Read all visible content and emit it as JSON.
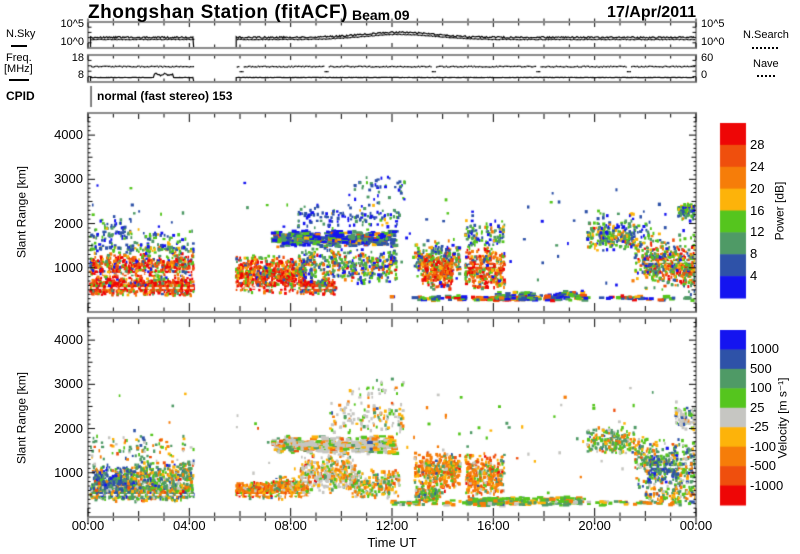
{
  "header": {
    "station_title": "Zhongshan Station (fitACF)",
    "beam_label": "Beam 09",
    "date_label": "17/Apr/2011"
  },
  "panels": {
    "nsky": {
      "left_label": "N.Sky",
      "right_label": "N.Search",
      "tick_top": "10^5",
      "tick_bottom": "10^0"
    },
    "freq": {
      "left_label_1": "Freq.",
      "left_label_2": "[MHz]",
      "right_label": "Nave",
      "tick_top": "18",
      "tick_bottom": "8",
      "right_tick_top": "60",
      "right_tick_bottom": "0"
    },
    "cpid": {
      "label": "CPID",
      "value": "normal (fast stereo) 153"
    }
  },
  "axes": {
    "x": {
      "label": "Time UT",
      "tick_labels": [
        "00:00",
        "04:00",
        "08:00",
        "12:00",
        "16:00",
        "20:00",
        "00:00"
      ],
      "tick_hours": [
        0,
        4,
        8,
        12,
        16,
        20,
        24
      ]
    },
    "y": {
      "label": "Slant Range [km]",
      "tick_labels": [
        "1000",
        "2000",
        "3000",
        "4000"
      ],
      "tick_values": [
        1000,
        2000,
        3000,
        4000
      ],
      "max_km": 4500
    }
  },
  "colorbars": {
    "power": {
      "title": "Power [dB]",
      "labels": [
        "28",
        "24",
        "20",
        "16",
        "12",
        "8",
        "4"
      ],
      "colors": [
        "#ee0606",
        "#ef4f0d",
        "#f67d09",
        "#fdb30a",
        "#55c51e",
        "#4f9a66",
        "#2e52a8",
        "#1414f0"
      ]
    },
    "velocity": {
      "title": "Velocity [m s⁻¹]",
      "labels": [
        "1000",
        "500",
        "100",
        "25",
        "-25",
        "-100",
        "-500",
        "-1000"
      ],
      "colors": [
        "#1414f0",
        "#2e52a8",
        "#4f9a66",
        "#55c51e",
        "#c6c6c2",
        "#fdb30a",
        "#f67d09",
        "#ef4f0d",
        "#ee0606"
      ]
    }
  },
  "chart_data": [
    {
      "name": "nsky_panel",
      "type": "line",
      "yscale": "log",
      "ylim_exponents": [
        0,
        5
      ],
      "data_gap_hours": [
        4.17,
        5.85
      ],
      "segments": [
        [
          0.1,
          4.17
        ],
        [
          5.85,
          23.95
        ]
      ],
      "nsky_base_decade": 2.0,
      "bump": {
        "center_hour": 12.3,
        "sigma_hours": 2.0,
        "amplitude_decades": 1.05
      },
      "nsearch_offset_decades": -0.3
    },
    {
      "name": "freq_panel",
      "type": "line",
      "freq_ylim_mhz": [
        8,
        18
      ],
      "nave_ylim": [
        0,
        60
      ],
      "segments": [
        [
          0.1,
          4.17
        ],
        [
          5.85,
          23.95
        ]
      ],
      "freq_mhz": 9.4,
      "freq_wiggle": {
        "t": [
          2.6,
          3.35
        ],
        "mhz": 10.6
      },
      "nave_value": 36,
      "nave_dip_hours": [
        6.05,
        9.4,
        13.6,
        17.75,
        21.3
      ],
      "nave_dip_value": 24,
      "cpid_marker_hour": 0.12
    },
    {
      "name": "power_panel",
      "type": "scatter",
      "ylim_km": [
        0,
        4500
      ],
      "color_bin_edges_db": [
        4,
        8,
        12,
        16,
        20,
        24,
        28
      ],
      "cluster_format": [
        "t_start",
        "t_end",
        "range_start_km",
        "range_end_km",
        "n_points",
        "color_weights(top_red...bottom_blue)",
        "range_slope_km_per_hour",
        "dash_shaped"
      ],
      "clusters": [
        [
          0.1,
          4.17,
          350,
          800,
          650,
          [
            0.4,
            0.22,
            0.12,
            0.07,
            0.09,
            0.05,
            0.03,
            0.02
          ],
          0,
          0
        ],
        [
          0.1,
          4.17,
          750,
          1350,
          500,
          [
            0.28,
            0.18,
            0.12,
            0.08,
            0.14,
            0.1,
            0.06,
            0.04
          ],
          0,
          0
        ],
        [
          0.1,
          4.17,
          1300,
          1550,
          90,
          [
            0,
            0,
            0.05,
            0.1,
            0.3,
            0.25,
            0.2,
            0.1
          ],
          0,
          0
        ],
        [
          0.1,
          1.7,
          1350,
          2250,
          80,
          [
            0,
            0,
            0,
            0.05,
            0.15,
            0.2,
            0.35,
            0.25
          ],
          0,
          0
        ],
        [
          1.7,
          4.17,
          1350,
          1950,
          55,
          [
            0,
            0,
            0,
            0.05,
            0.15,
            0.2,
            0.35,
            0.25
          ],
          0,
          0
        ],
        [
          5.85,
          8.6,
          400,
          1300,
          620,
          [
            0.34,
            0.2,
            0.13,
            0.08,
            0.12,
            0.07,
            0.04,
            0.02
          ],
          0,
          0
        ],
        [
          8.4,
          9.8,
          380,
          750,
          220,
          [
            0.3,
            0.22,
            0.15,
            0.08,
            0.12,
            0.08,
            0.03,
            0.02
          ],
          0,
          0
        ],
        [
          8.3,
          12.2,
          600,
          1500,
          420,
          [
            0.04,
            0.06,
            0.08,
            0.1,
            0.22,
            0.2,
            0.18,
            0.12
          ],
          0,
          0
        ],
        [
          7.3,
          12.15,
          1450,
          1850,
          430,
          [
            0,
            0.02,
            0.04,
            0.06,
            0.14,
            0.18,
            0.3,
            0.26
          ],
          0,
          1
        ],
        [
          8.3,
          12.3,
          1850,
          2500,
          130,
          [
            0,
            0,
            0,
            0.04,
            0.12,
            0.16,
            0.36,
            0.32
          ],
          0,
          0
        ],
        [
          10.3,
          12.5,
          2500,
          3150,
          40,
          [
            0,
            0,
            0,
            0,
            0.1,
            0.15,
            0.4,
            0.35
          ],
          0,
          0
        ],
        [
          12.9,
          14.7,
          700,
          1650,
          260,
          [
            0.04,
            0.06,
            0.08,
            0.12,
            0.24,
            0.2,
            0.16,
            0.1
          ],
          0,
          0
        ],
        [
          13.2,
          14.4,
          480,
          1300,
          210,
          [
            0.24,
            0.3,
            0.2,
            0.1,
            0.08,
            0.05,
            0.02,
            0.01
          ],
          0,
          0
        ],
        [
          14.9,
          16.45,
          400,
          1500,
          330,
          [
            0.22,
            0.28,
            0.18,
            0.1,
            0.1,
            0.07,
            0.03,
            0.02
          ],
          0,
          0
        ],
        [
          14.9,
          16.45,
          1400,
          2100,
          100,
          [
            0,
            0,
            0.04,
            0.08,
            0.26,
            0.24,
            0.22,
            0.16
          ],
          0,
          0
        ],
        [
          15.2,
          17.3,
          255,
          340,
          80,
          [
            0.3,
            0.25,
            0.1,
            0.05,
            0.12,
            0.1,
            0.05,
            0.03
          ],
          0,
          1
        ],
        [
          16.1,
          19.6,
          255,
          470,
          90,
          [
            0,
            0.03,
            0.05,
            0.07,
            0.2,
            0.2,
            0.25,
            0.2
          ],
          0,
          1
        ],
        [
          19.7,
          21.6,
          1350,
          2060,
          210,
          [
            0.02,
            0.04,
            0.1,
            0.14,
            0.28,
            0.2,
            0.14,
            0.08
          ],
          0,
          0
        ],
        [
          20.0,
          22.2,
          1500,
          2330,
          60,
          [
            0,
            0,
            0,
            0.05,
            0.15,
            0.15,
            0.35,
            0.3
          ],
          0,
          0
        ],
        [
          21.9,
          24.0,
          650,
          1650,
          340,
          [
            0.18,
            0.22,
            0.18,
            0.12,
            0.14,
            0.08,
            0.05,
            0.03
          ],
          -90,
          0
        ],
        [
          21.6,
          24.0,
          500,
          1950,
          230,
          [
            0.03,
            0.05,
            0.08,
            0.1,
            0.3,
            0.22,
            0.14,
            0.08
          ],
          -60,
          0
        ],
        [
          23.3,
          24.0,
          2050,
          2520,
          80,
          [
            0,
            0,
            0.03,
            0.07,
            0.3,
            0.25,
            0.2,
            0.15
          ],
          0,
          0
        ],
        [
          12.0,
          24.0,
          250,
          380,
          110,
          [
            0.06,
            0.08,
            0.06,
            0.05,
            0.2,
            0.15,
            0.22,
            0.18
          ],
          0,
          1
        ],
        [
          0.1,
          24.0,
          300,
          3100,
          115,
          [
            0,
            0,
            0.02,
            0.03,
            0.15,
            0.15,
            0.35,
            0.3
          ],
          0,
          0
        ]
      ]
    },
    {
      "name": "velocity_panel",
      "type": "scatter",
      "ylim_km": [
        0,
        4500
      ],
      "color_bin_edges_ms": [
        -1000,
        -500,
        -100,
        -25,
        25,
        100,
        500,
        1000
      ],
      "cluster_format": [
        "t_start",
        "t_end",
        "range_start_km",
        "range_end_km",
        "n_points",
        "color_weights(top_blue...bottom_red)",
        "range_slope_km_per_hour",
        "dash_shaped"
      ],
      "clusters": [
        [
          0.1,
          4.17,
          330,
          800,
          600,
          [
            0.02,
            0.08,
            0.3,
            0.2,
            0.1,
            0.1,
            0.13,
            0.05,
            0.02
          ],
          0,
          0
        ],
        [
          0.2,
          1.8,
          450,
          1200,
          320,
          [
            0.08,
            0.38,
            0.26,
            0.1,
            0.04,
            0.05,
            0.07,
            0.02,
            0
          ],
          0,
          0
        ],
        [
          1.8,
          4.17,
          600,
          1300,
          280,
          [
            0.02,
            0.1,
            0.34,
            0.2,
            0.06,
            0.1,
            0.14,
            0.03,
            0.01
          ],
          0,
          0
        ],
        [
          0.1,
          4.17,
          1250,
          1900,
          80,
          [
            0,
            0.06,
            0.28,
            0.22,
            0.1,
            0.14,
            0.16,
            0.04,
            0
          ],
          0,
          0
        ],
        [
          5.85,
          7.3,
          400,
          800,
          290,
          [
            0,
            0.01,
            0.06,
            0.1,
            0.05,
            0.14,
            0.36,
            0.18,
            0.1
          ],
          0,
          0
        ],
        [
          7.2,
          8.7,
          380,
          950,
          280,
          [
            0,
            0.01,
            0.08,
            0.14,
            0.08,
            0.2,
            0.34,
            0.12,
            0.03
          ],
          0,
          0
        ],
        [
          8.4,
          10.6,
          500,
          1450,
          390,
          [
            0,
            0.01,
            0.08,
            0.12,
            0.42,
            0.16,
            0.16,
            0.04,
            0.01
          ],
          0,
          0
        ],
        [
          10.4,
          12.3,
          380,
          1100,
          220,
          [
            0,
            0.02,
            0.14,
            0.2,
            0.22,
            0.18,
            0.2,
            0.04,
            0
          ],
          0,
          0
        ],
        [
          7.3,
          12.15,
          1400,
          1850,
          410,
          [
            0,
            0.01,
            0.08,
            0.12,
            0.5,
            0.12,
            0.12,
            0.04,
            0.01
          ],
          0,
          1
        ],
        [
          9.5,
          12.5,
          1850,
          2650,
          120,
          [
            0,
            0.01,
            0.06,
            0.15,
            0.55,
            0.1,
            0.12,
            0.01,
            0
          ],
          0,
          0
        ],
        [
          10.3,
          12.5,
          2650,
          3150,
          30,
          [
            0,
            0,
            0.1,
            0.25,
            0.45,
            0.1,
            0.1,
            0,
            0
          ],
          0,
          0
        ],
        [
          12.9,
          14.7,
          500,
          1550,
          370,
          [
            0,
            0.01,
            0.07,
            0.1,
            0.07,
            0.17,
            0.42,
            0.13,
            0.03
          ],
          0,
          0
        ],
        [
          12.9,
          13.9,
          300,
          700,
          110,
          [
            0,
            0.05,
            0.3,
            0.3,
            0.05,
            0.1,
            0.18,
            0.02,
            0
          ],
          0,
          0
        ],
        [
          14.9,
          16.45,
          400,
          1500,
          350,
          [
            0,
            0.01,
            0.06,
            0.1,
            0.09,
            0.17,
            0.42,
            0.12,
            0.03
          ],
          0,
          0
        ],
        [
          15.0,
          16.4,
          250,
          450,
          70,
          [
            0,
            0.03,
            0.28,
            0.35,
            0.06,
            0.1,
            0.16,
            0.02,
            0
          ],
          0,
          1
        ],
        [
          16.1,
          19.6,
          255,
          470,
          80,
          [
            0,
            0.04,
            0.3,
            0.3,
            0.08,
            0.1,
            0.15,
            0.03,
            0
          ],
          0,
          1
        ],
        [
          19.7,
          21.6,
          1350,
          2060,
          200,
          [
            0,
            0.04,
            0.3,
            0.3,
            0.1,
            0.12,
            0.12,
            0.02,
            0
          ],
          0,
          0
        ],
        [
          21.6,
          24.0,
          600,
          1950,
          390,
          [
            0.02,
            0.12,
            0.34,
            0.2,
            0.06,
            0.1,
            0.13,
            0.03,
            0
          ],
          -80,
          0
        ],
        [
          22.1,
          23.3,
          750,
          1350,
          90,
          [
            0.1,
            0.55,
            0.25,
            0.1,
            0,
            0,
            0,
            0,
            0
          ],
          0,
          0
        ],
        [
          23.2,
          24.0,
          1950,
          2550,
          90,
          [
            0,
            0.02,
            0.1,
            0.18,
            0.55,
            0.1,
            0.05,
            0,
            0
          ],
          0,
          0
        ],
        [
          12.0,
          24.0,
          250,
          380,
          100,
          [
            0,
            0.03,
            0.25,
            0.27,
            0.1,
            0.15,
            0.18,
            0.02,
            0
          ],
          0,
          1
        ],
        [
          0.1,
          24.0,
          300,
          3100,
          105,
          [
            0,
            0.02,
            0.18,
            0.25,
            0.25,
            0.15,
            0.13,
            0.02,
            0
          ],
          0,
          0
        ],
        [
          22.0,
          24.0,
          300,
          700,
          90,
          [
            0,
            0.05,
            0.2,
            0.2,
            0.06,
            0.2,
            0.25,
            0.04,
            0
          ],
          0,
          0
        ]
      ],
      "white_streaks": [
        {
          "panel": "power",
          "r": 560,
          "t": [
            0.15,
            4.1
          ]
        },
        {
          "panel": "power",
          "r": 560,
          "t": [
            5.9,
            9.6
          ]
        },
        {
          "panel": "power",
          "r": 880,
          "t": [
            0.3,
            4.0
          ]
        },
        {
          "panel": "power",
          "r": 1060,
          "t": [
            15.0,
            16.3
          ]
        },
        {
          "panel": "power",
          "r": 1150,
          "t": [
            22.0,
            23.8
          ]
        },
        {
          "panel": "velocity",
          "r": 520,
          "t": [
            0.15,
            4.1
          ]
        },
        {
          "panel": "velocity",
          "r": 520,
          "t": [
            5.9,
            9.6
          ]
        },
        {
          "panel": "velocity",
          "r": 860,
          "t": [
            6.0,
            9.0
          ]
        },
        {
          "panel": "velocity",
          "r": 1150,
          "t": [
            22.0,
            23.8
          ]
        }
      ]
    }
  ]
}
